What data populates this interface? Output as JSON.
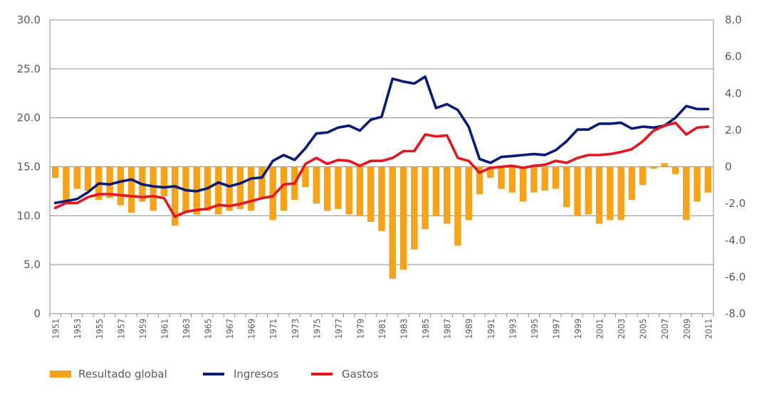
{
  "chart_data": {
    "type": "bar+line",
    "title": "",
    "xlabel": "",
    "ylabel": "",
    "x": [
      1951,
      1952,
      1953,
      1954,
      1955,
      1956,
      1957,
      1958,
      1959,
      1960,
      1961,
      1962,
      1963,
      1964,
      1965,
      1966,
      1967,
      1968,
      1969,
      1970,
      1971,
      1972,
      1973,
      1974,
      1975,
      1976,
      1977,
      1978,
      1979,
      1980,
      1981,
      1982,
      1983,
      1984,
      1985,
      1986,
      1987,
      1988,
      1989,
      1990,
      1991,
      1992,
      1993,
      1994,
      1995,
      1996,
      1997,
      1998,
      1999,
      2000,
      2001,
      2002,
      2003,
      2004,
      2005,
      2006,
      2007,
      2008,
      2009,
      2010,
      2011
    ],
    "x_tick_labels": [
      "1951",
      "1953",
      "1955",
      "1957",
      "1959",
      "1961",
      "1963",
      "1965",
      "1967",
      "1969",
      "1971",
      "1973",
      "1975",
      "1977",
      "1979",
      "1981",
      "1983",
      "1985",
      "1987",
      "1989",
      "1991",
      "1993",
      "1995",
      "1997",
      "1999",
      "2001",
      "2003",
      "2005",
      "2007",
      "2009",
      "2011"
    ],
    "y_left": {
      "min": 0,
      "max": 30,
      "ticks": [
        0,
        5,
        10,
        15,
        20,
        25,
        30
      ],
      "tick_labels": [
        "0",
        "5.0",
        "10.0",
        "15.0",
        "20.0",
        "25.0",
        "30.0"
      ]
    },
    "y_right": {
      "min": -8,
      "max": 8,
      "ticks": [
        -8,
        -6,
        -4,
        -2,
        0,
        2,
        4,
        6,
        8
      ],
      "tick_labels": [
        "-8.0",
        "-6.0",
        "-4.0",
        "-2.0",
        "0",
        "2.0",
        "4.0",
        "6.0",
        "8.0"
      ]
    },
    "grid": true,
    "legend_position": "bottom-left",
    "series": [
      {
        "name": "Resultado global",
        "type": "bar",
        "axis": "right",
        "color": "#F5A31A",
        "values": [
          -0.6,
          -1.8,
          -1.2,
          -1.3,
          -1.8,
          -1.7,
          -2.1,
          -2.5,
          -1.9,
          -2.4,
          -1.6,
          -3.2,
          -2.5,
          -2.6,
          -2.4,
          -2.6,
          -2.4,
          -2.3,
          -2.4,
          -1.7,
          -2.9,
          -2.4,
          -1.8,
          -1.1,
          -2.0,
          -2.4,
          -2.3,
          -2.6,
          -2.7,
          -3.0,
          -3.5,
          -6.1,
          -5.6,
          -4.5,
          -3.4,
          -2.7,
          -3.1,
          -4.3,
          -2.9,
          -1.5,
          -0.6,
          -1.2,
          -1.4,
          -1.9,
          -1.4,
          -1.3,
          -1.2,
          -2.2,
          -2.7,
          -2.6,
          -3.1,
          -2.9,
          -2.9,
          -1.8,
          -1.0,
          -0.1,
          0.2,
          -0.4,
          -2.9,
          -1.9,
          -1.4
        ]
      },
      {
        "name": "Ingresos",
        "type": "line",
        "axis": "left",
        "color": "#0A1A78",
        "values": [
          11.3,
          11.5,
          11.7,
          12.4,
          13.3,
          13.2,
          13.5,
          13.7,
          13.2,
          13.0,
          12.9,
          13.0,
          12.6,
          12.5,
          12.8,
          13.4,
          13.0,
          13.3,
          13.8,
          13.9,
          15.6,
          16.2,
          15.7,
          16.9,
          18.4,
          18.5,
          19.0,
          19.2,
          18.7,
          19.8,
          20.1,
          24.0,
          23.7,
          23.5,
          24.2,
          21.0,
          21.4,
          20.8,
          19.1,
          15.8,
          15.4,
          16.0,
          16.1,
          16.2,
          16.3,
          16.2,
          16.7,
          17.6,
          18.8,
          18.8,
          19.4,
          19.4,
          19.5,
          18.9,
          19.1,
          19.0,
          19.2,
          20.0,
          21.2,
          20.9,
          20.9
        ]
      },
      {
        "name": "Gastos",
        "type": "line",
        "axis": "left",
        "color": "#E8141C",
        "values": [
          10.8,
          11.3,
          11.3,
          11.9,
          12.2,
          12.2,
          12.1,
          12.0,
          11.9,
          12.0,
          11.8,
          9.9,
          10.4,
          10.6,
          10.7,
          11.1,
          11.0,
          11.2,
          11.5,
          11.8,
          12.0,
          13.2,
          13.3,
          15.3,
          15.9,
          15.3,
          15.7,
          15.6,
          15.1,
          15.6,
          15.6,
          15.9,
          16.6,
          16.6,
          18.3,
          18.1,
          18.2,
          15.9,
          15.6,
          14.4,
          14.9,
          15.0,
          15.1,
          14.9,
          15.1,
          15.2,
          15.6,
          15.4,
          15.9,
          16.2,
          16.2,
          16.3,
          16.5,
          16.8,
          17.6,
          18.7,
          19.2,
          19.5,
          18.3,
          19.0,
          19.1
        ]
      }
    ]
  }
}
